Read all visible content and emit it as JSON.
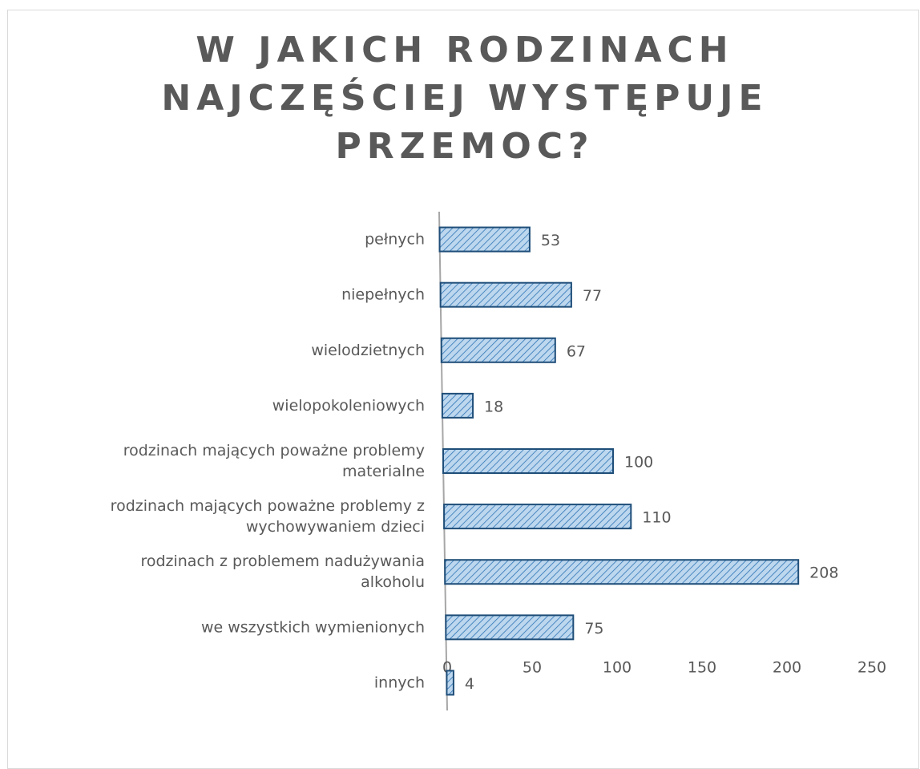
{
  "chart_data": {
    "type": "bar",
    "orientation": "horizontal",
    "title": "W JAKICH RODZINACH NAJCZĘŚCIEJ WYSTĘPUJE PRZEMOC?",
    "categories": [
      "pełnych",
      "niepełnych",
      "wielodzietnych",
      "wielopokoleniowych",
      "rodzinach mających poważne problemy materialne",
      "rodzinach mających poważne problemy z wychowywaniem dzieci",
      "rodzinach z problemem nadużywania alkoholu",
      "we wszystkich wymienionych",
      "innych"
    ],
    "values": [
      53,
      77,
      67,
      18,
      100,
      110,
      208,
      75,
      4
    ],
    "color": "#9dc3e6",
    "xlim": [
      0,
      250
    ],
    "xticks": [
      0,
      50,
      100,
      150,
      200,
      250
    ],
    "grid": false
  }
}
